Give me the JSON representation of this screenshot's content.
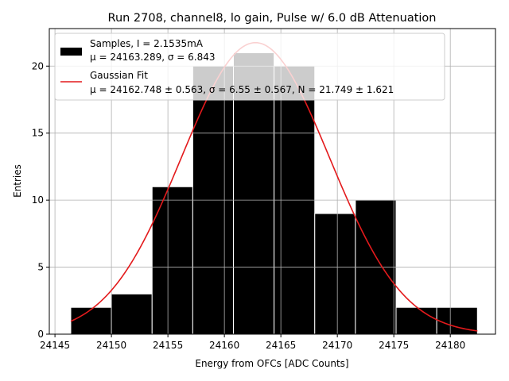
{
  "chart_data": {
    "type": "bar",
    "title": "Run 2708, channel8, lo gain, Pulse w/ 6.0 dB Attenuation",
    "xlabel": "Energy from OFCs [ADC Counts]",
    "ylabel": "Entries",
    "xlim": [
      24144.5,
      24184.0
    ],
    "ylim": [
      0,
      22.8
    ],
    "xticks": [
      24145,
      24150,
      24155,
      24160,
      24165,
      24170,
      24175,
      24180
    ],
    "yticks": [
      0,
      5,
      10,
      15,
      20
    ],
    "grid": true,
    "legend_position": "top-left",
    "histogram": {
      "name": "Samples, I = 2.1535mA",
      "stats_label": "μ = 24163.289, σ = 6.843",
      "color": "#000000",
      "bin_edges": [
        24146.4,
        24150.0,
        24153.6,
        24157.2,
        24160.8,
        24164.4,
        24168.0,
        24171.6,
        24175.2,
        24178.8,
        24182.4
      ],
      "counts": [
        2,
        3,
        11,
        20,
        21,
        20,
        9,
        10,
        2,
        2
      ]
    },
    "fit": {
      "name": "Gaussian Fit",
      "params_label": "μ = 24162.748 ± 0.563, σ = 6.55 ± 0.567, N = 21.749 ± 1.621",
      "color": "#e31a1c",
      "mu": 24162.748,
      "sigma": 6.55,
      "N": 21.749,
      "x_range": [
        24146.4,
        24182.4
      ]
    }
  }
}
